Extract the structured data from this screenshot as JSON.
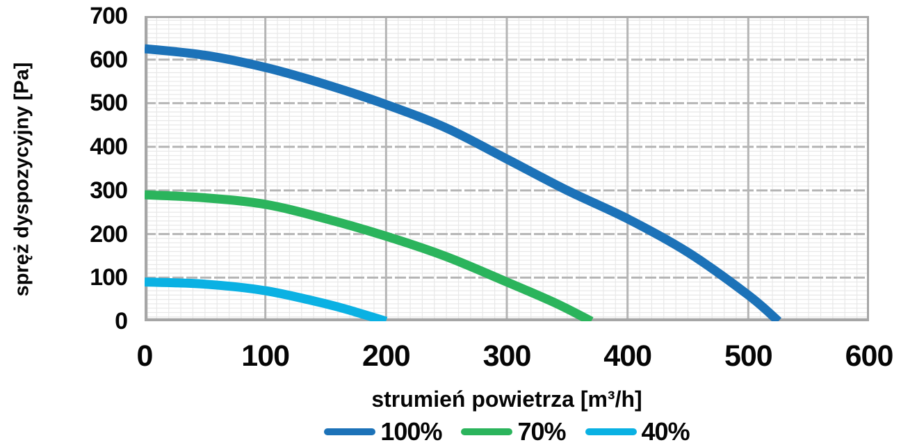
{
  "chart_data": {
    "type": "line",
    "title": "",
    "xlabel": "strumień powietrza [m³/h]",
    "ylabel": "spręż dyspozycyjny [Pa]",
    "xlim": [
      0,
      600
    ],
    "ylim": [
      0,
      700
    ],
    "x_ticks": [
      0,
      100,
      200,
      300,
      400,
      500,
      600
    ],
    "y_ticks": [
      0,
      100,
      200,
      300,
      400,
      500,
      600,
      700
    ],
    "x_minor_step": 10,
    "y_minor_step": 10,
    "grid": true,
    "legend_position": "bottom",
    "series": [
      {
        "name": "100%",
        "color": "#1C72B8",
        "points": [
          [
            0,
            625
          ],
          [
            50,
            610
          ],
          [
            100,
            582
          ],
          [
            150,
            543
          ],
          [
            200,
            497
          ],
          [
            250,
            443
          ],
          [
            300,
            372
          ],
          [
            350,
            300
          ],
          [
            400,
            235
          ],
          [
            450,
            158
          ],
          [
            500,
            60
          ],
          [
            525,
            0
          ]
        ]
      },
      {
        "name": "70%",
        "color": "#2BB45C",
        "points": [
          [
            0,
            290
          ],
          [
            50,
            283
          ],
          [
            100,
            268
          ],
          [
            150,
            235
          ],
          [
            200,
            195
          ],
          [
            250,
            148
          ],
          [
            300,
            90
          ],
          [
            340,
            42
          ],
          [
            370,
            0
          ]
        ]
      },
      {
        "name": "40%",
        "color": "#0AB1E3",
        "points": [
          [
            0,
            90
          ],
          [
            50,
            85
          ],
          [
            100,
            70
          ],
          [
            150,
            40
          ],
          [
            175,
            21
          ],
          [
            200,
            0
          ]
        ]
      }
    ]
  },
  "legend": {
    "items": [
      {
        "label": "100%",
        "color": "#1C72B8"
      },
      {
        "label": "70%",
        "color": "#2BB45C"
      },
      {
        "label": "40%",
        "color": "#0AB1E3"
      }
    ]
  },
  "colors": {
    "grid_minor": "#e8e8e8",
    "grid_major": "#b5b5b5",
    "frame": "#a6a6a6",
    "text": "#050505"
  }
}
